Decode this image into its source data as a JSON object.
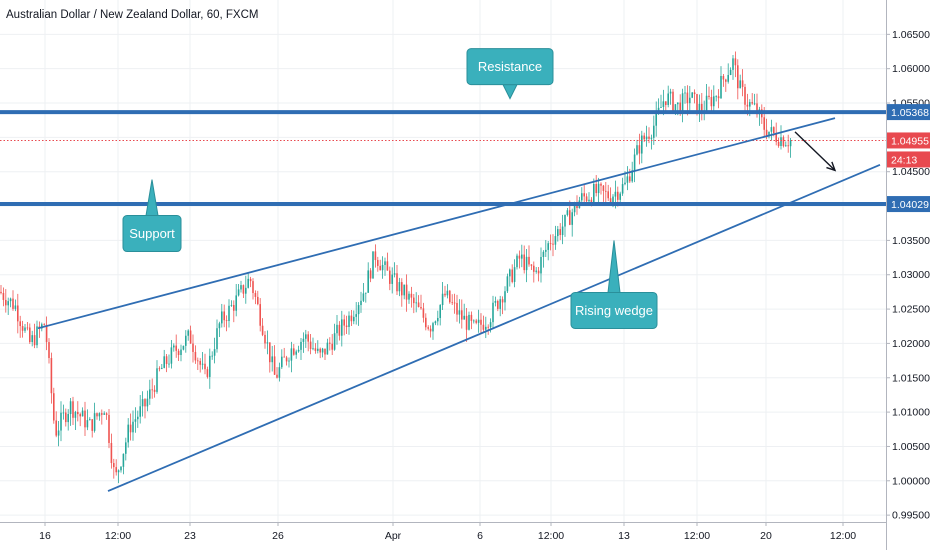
{
  "header": {
    "title": "Australian Dollar / New Zealand Dollar, 60, FXCM"
  },
  "chart_data": {
    "type": "candlestick",
    "symbol": "AUDNZD",
    "timeframe": "60",
    "source": "FXCM",
    "ylim": [
      0.994,
      1.07
    ],
    "y_ticks": [
      "1.06500",
      "1.06000",
      "1.05500",
      "1.05000",
      "1.04500",
      "1.04000",
      "1.03500",
      "1.03000",
      "1.02500",
      "1.02000",
      "1.01500",
      "1.01000",
      "1.00500",
      "1.00000",
      "0.99500"
    ],
    "x_ticks": [
      "16",
      "12:00",
      "23",
      "26",
      "Apr",
      "6",
      "12:00",
      "13",
      "12:00",
      "20",
      "12:00"
    ],
    "price_path": [
      [
        0,
        1.0275
      ],
      [
        15,
        1.0255
      ],
      [
        30,
        1.02
      ],
      [
        45,
        1.023
      ],
      [
        55,
        1.007
      ],
      [
        70,
        1.011
      ],
      [
        90,
        1.008
      ],
      [
        105,
        1.011
      ],
      [
        115,
        1.0
      ],
      [
        130,
        1.008
      ],
      [
        145,
        1.011
      ],
      [
        160,
        1.016
      ],
      [
        175,
        1.019
      ],
      [
        190,
        1.021
      ],
      [
        205,
        1.015
      ],
      [
        220,
        1.023
      ],
      [
        235,
        1.026
      ],
      [
        250,
        1.0295
      ],
      [
        262,
        1.023
      ],
      [
        275,
        1.015
      ],
      [
        290,
        1.019
      ],
      [
        305,
        1.021
      ],
      [
        320,
        1.018
      ],
      [
        335,
        1.021
      ],
      [
        350,
        1.024
      ],
      [
        365,
        1.028
      ],
      [
        375,
        1.033
      ],
      [
        388,
        1.03
      ],
      [
        400,
        1.028
      ],
      [
        415,
        1.0255
      ],
      [
        430,
        1.0225
      ],
      [
        445,
        1.027
      ],
      [
        460,
        1.024
      ],
      [
        475,
        1.022
      ],
      [
        490,
        1.024
      ],
      [
        505,
        1.028
      ],
      [
        520,
        1.0325
      ],
      [
        535,
        1.03
      ],
      [
        550,
        1.035
      ],
      [
        565,
        1.0375
      ],
      [
        580,
        1.041
      ],
      [
        595,
        1.042
      ],
      [
        610,
        1.0415
      ],
      [
        625,
        1.043
      ],
      [
        640,
        1.049
      ],
      [
        655,
        1.052
      ],
      [
        665,
        1.056
      ],
      [
        678,
        1.0545
      ],
      [
        690,
        1.056
      ],
      [
        700,
        1.054
      ],
      [
        715,
        1.056
      ],
      [
        725,
        1.059
      ],
      [
        733,
        1.061
      ],
      [
        740,
        1.057
      ],
      [
        748,
        1.055
      ],
      [
        756,
        1.054
      ],
      [
        764,
        1.0515
      ],
      [
        772,
        1.0505
      ],
      [
        780,
        1.05
      ],
      [
        790,
        1.0495
      ]
    ],
    "horizontal_levels": [
      {
        "name": "Resistance",
        "price": 1.05368,
        "label": "1.05368",
        "color": "#2f6db3"
      },
      {
        "name": "Support",
        "price": 1.04029,
        "label": "1.04029",
        "color": "#2f6db3"
      }
    ],
    "current_price": {
      "price": 1.04955,
      "label": "1.04955",
      "countdown": "24:13",
      "color": "#e8494f"
    },
    "trendlines": [
      {
        "name": "upper-wedge-line",
        "from": [
          38,
          1.0222
        ],
        "to": [
          835,
          1.0528
        ]
      },
      {
        "name": "lower-wedge-line",
        "from": [
          108,
          0.9985
        ],
        "to": [
          880,
          1.046
        ]
      }
    ],
    "projection_arrow": {
      "from": [
        795,
        1.0508
      ],
      "to": [
        835,
        1.0452
      ]
    },
    "annotations": [
      {
        "text": "Resistance",
        "price": 1.0603,
        "x": 510,
        "pointer": "down"
      },
      {
        "text": "Support",
        "price": 1.036,
        "x": 152,
        "pointer": "up"
      },
      {
        "text": "Rising wedge",
        "price": 1.0248,
        "x": 614,
        "pointer": "up"
      }
    ],
    "colors": {
      "up": "#26a69a",
      "down": "#ef5350",
      "line": "#2f6db3",
      "callout": "#3ab0bc"
    }
  }
}
